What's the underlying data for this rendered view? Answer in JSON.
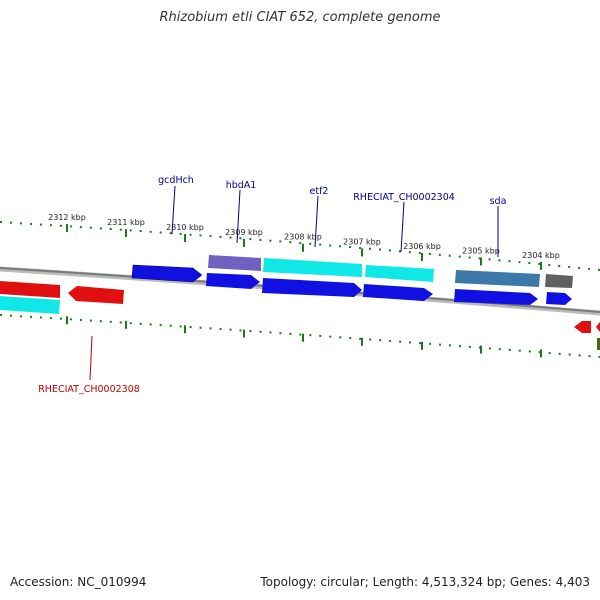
{
  "title": "Rhizobium etli CIAT 652, complete genome",
  "footer": {
    "accession": "Accession: NC_010994",
    "topology": "Topology: circular; Length: 4,513,324 bp; Genes: 4,403"
  },
  "colors": {
    "forward_gene": "#1010e0",
    "reverse_gene": "#e01010",
    "cds": "#10e8e8",
    "rna_purple": "#7060c0",
    "steel": "#3c78a8",
    "grey_feature": "#606060",
    "tick": "#1a7a1a",
    "backbone": "#888888",
    "label_forward": "#00008b",
    "label_reverse": "#c00000"
  },
  "ticks": [
    {
      "label": "2312 kbp"
    },
    {
      "label": "2311 kbp"
    },
    {
      "label": "2310 kbp"
    },
    {
      "label": "2309 kbp"
    },
    {
      "label": "2308 kbp"
    },
    {
      "label": "2307 kbp"
    },
    {
      "label": "2306 kbp"
    },
    {
      "label": "2305 kbp"
    },
    {
      "label": "2304 kbp"
    }
  ],
  "gene_labels": [
    {
      "text": "gcdHch",
      "strand": "forward"
    },
    {
      "text": "hbdA1",
      "strand": "forward"
    },
    {
      "text": "etf2",
      "strand": "forward"
    },
    {
      "text": "RHECIAT_CH0002304",
      "strand": "forward"
    },
    {
      "text": "sda",
      "strand": "forward"
    },
    {
      "text": "RHECIAT_CH0002308",
      "strand": "reverse"
    }
  ]
}
